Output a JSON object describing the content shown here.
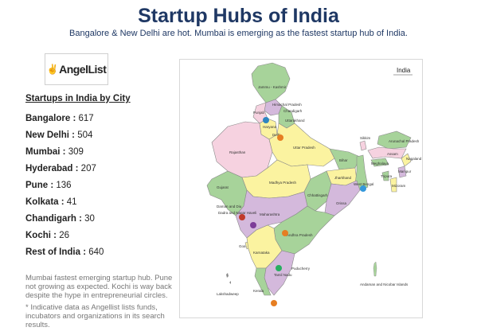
{
  "title": "Startup Hubs of India",
  "subtitle": "Bangalore & New Delhi are hot. Mumbai is emerging as the fastest startup hub of India.",
  "logo": {
    "text": "AngelList",
    "icon": "peace-hand-icon"
  },
  "section_title": "Startups in India by City",
  "stats": [
    {
      "city": "Bangalore",
      "count": "617"
    },
    {
      "city": "New Delhi",
      "count": "504"
    },
    {
      "city": "Mumbai",
      "count": "309"
    },
    {
      "city": "Hyderabad",
      "count": "207"
    },
    {
      "city": "Pune",
      "count": "136"
    },
    {
      "city": "Kolkata",
      "count": "41"
    },
    {
      "city": "Chandigarh",
      "count": "30"
    },
    {
      "city": "Kochi",
      "count": "26"
    },
    {
      "city": "Rest of India",
      "count": "640"
    }
  ],
  "note1": "Mumbai fastest emerging startup hub. Pune not growing as expected. Kochi is way back despite the hype in entrepreneurial circles.",
  "note2": "* Indicative data as Angellist lists funds, incubators and organizations in its search results.",
  "map": {
    "heading": "India",
    "states": {
      "jk": "Jammu - Kashmir",
      "hp": "Himachal Pradesh",
      "punjab": "Punjab",
      "chandigarh": "Chandigarh",
      "uttarakhand": "Uttarakhand",
      "haryana": "Haryana",
      "delhi": "Delhi",
      "rajasthan": "Rajasthan",
      "up": "Uttar Pradesh",
      "sikkim": "Sikkim",
      "arunachal": "Arunachal Pradesh",
      "assam": "Assam",
      "nagaland": "Nagaland",
      "meghalaya": "Meghalaya",
      "manipur": "Manipur",
      "tripura": "Tripura",
      "mizoram": "Mizoram",
      "bihar": "Bihar",
      "gujarat": "Gujarat",
      "mp": "Madhya Pradesh",
      "jharkhand": "Jharkhand",
      "wb": "West Bengal",
      "chhattisgarh": "Chhattisgarh",
      "orissa": "Orissa",
      "daman": "Daman and Diu",
      "dadra": "Dadra and Nagar Haveli",
      "maharashtra": "Maharashtra",
      "ap": "Andhra Pradesh",
      "goa": "Goa",
      "karnataka": "Karnataka",
      "puducherry": "Puducherry",
      "tn": "Tamil Nadu",
      "kerala": "Kerala",
      "lakshadweep": "Lakshadweep",
      "andaman": "Andaman and Nicobar Islands"
    },
    "city_colors": {
      "chandigarh": "#2e86c1",
      "delhi": "#e67e22",
      "mumbai": "#c0392b",
      "pune": "#7d3c98",
      "hyderabad": "#e67e22",
      "bangalore": "#27ae60",
      "kochi": "#e67e22",
      "kolkata": "#3498db"
    }
  }
}
